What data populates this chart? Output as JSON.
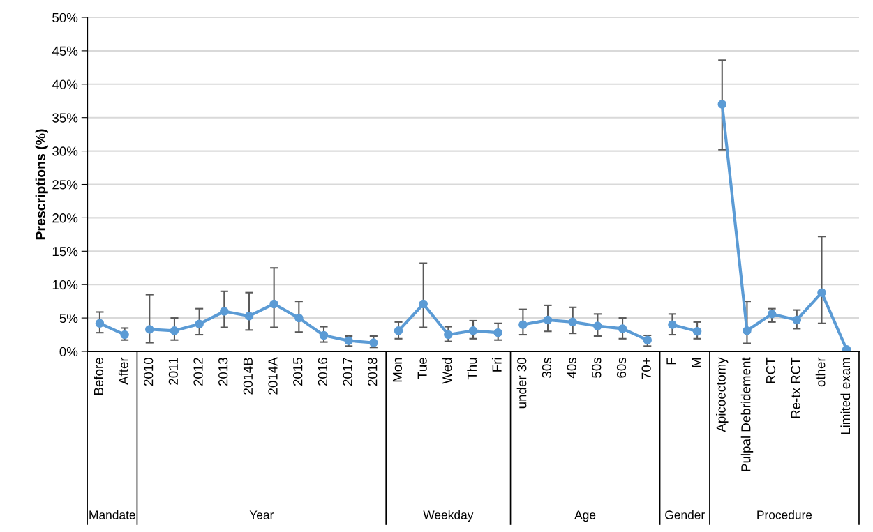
{
  "chart_data": {
    "type": "line",
    "ylabel": "Prescriptions (%)",
    "categories": [
      "Before",
      "After",
      "2010",
      "2011",
      "2012",
      "2013",
      "2014B",
      "2014A",
      "2015",
      "2016",
      "2017",
      "2018",
      "Mon",
      "Tue",
      "Wed",
      "Thu",
      "Fri",
      "under 30",
      "30s",
      "40s",
      "50s",
      "60s",
      "70+",
      "F",
      "M",
      "Apicoectomy",
      "Pulpal Debridement",
      "RCT",
      "Re-tx RCT",
      "other",
      "Limited exam"
    ],
    "series": [
      {
        "color": "#5b9bd5",
        "values": [
          4.2,
          2.5,
          null,
          null,
          null,
          null,
          null,
          null,
          null,
          null,
          null,
          null,
          null,
          null,
          null,
          null,
          null,
          null,
          null,
          null,
          null,
          null,
          null,
          null,
          null,
          null,
          null,
          null,
          null,
          null,
          null
        ],
        "errors": [
          [
            2.8,
            5.9
          ],
          [
            1.7,
            3.5
          ],
          null,
          null,
          null,
          null,
          null,
          null,
          null,
          null,
          null,
          null,
          null,
          null,
          null,
          null,
          null,
          null,
          null,
          null,
          null,
          null,
          null,
          null,
          null,
          null,
          null,
          null,
          null,
          null,
          null
        ]
      },
      {
        "color": "#5b9bd5",
        "values": [
          null,
          null,
          3.3,
          3.1,
          4.1,
          6.0,
          5.3,
          7.1,
          5.0,
          2.4,
          1.6,
          1.3,
          null,
          null,
          null,
          null,
          null,
          null,
          null,
          null,
          null,
          null,
          null,
          null,
          null,
          null,
          null,
          null,
          null,
          null,
          null
        ],
        "errors": [
          null,
          null,
          [
            1.3,
            8.5
          ],
          [
            1.7,
            5.0
          ],
          [
            2.5,
            6.4
          ],
          [
            3.6,
            9.0
          ],
          [
            3.2,
            8.8
          ],
          [
            3.6,
            12.5
          ],
          [
            2.9,
            7.5
          ],
          [
            1.4,
            3.7
          ],
          [
            0.8,
            2.3
          ],
          [
            0.6,
            2.3
          ],
          null,
          null,
          null,
          null,
          null,
          null,
          null,
          null,
          null,
          null,
          null,
          null,
          null,
          null,
          null,
          null,
          null,
          null,
          null
        ]
      },
      {
        "color": "#5b9bd5",
        "values": [
          null,
          null,
          null,
          null,
          null,
          null,
          null,
          null,
          null,
          null,
          null,
          null,
          3.1,
          7.1,
          2.5,
          3.1,
          2.8,
          null,
          null,
          null,
          null,
          null,
          null,
          null,
          null,
          null,
          null,
          null,
          null,
          null,
          null
        ],
        "errors": [
          null,
          null,
          null,
          null,
          null,
          null,
          null,
          null,
          null,
          null,
          null,
          null,
          [
            1.9,
            4.4
          ],
          [
            3.6,
            13.2
          ],
          [
            1.5,
            3.7
          ],
          [
            1.9,
            4.6
          ],
          [
            1.7,
            4.2
          ],
          null,
          null,
          null,
          null,
          null,
          null,
          null,
          null,
          null,
          null,
          null,
          null,
          null,
          null
        ]
      },
      {
        "color": "#5b9bd5",
        "values": [
          null,
          null,
          null,
          null,
          null,
          null,
          null,
          null,
          null,
          null,
          null,
          null,
          null,
          null,
          null,
          null,
          null,
          4.0,
          4.7,
          4.4,
          3.8,
          3.4,
          1.7,
          null,
          null,
          null,
          null,
          null,
          null,
          null,
          null
        ],
        "errors": [
          null,
          null,
          null,
          null,
          null,
          null,
          null,
          null,
          null,
          null,
          null,
          null,
          null,
          null,
          null,
          null,
          null,
          [
            2.5,
            6.3
          ],
          [
            3.0,
            6.9
          ],
          [
            2.7,
            6.6
          ],
          [
            2.3,
            5.6
          ],
          [
            1.9,
            5.0
          ],
          [
            0.8,
            2.4
          ],
          null,
          null,
          null,
          null,
          null,
          null,
          null,
          null
        ]
      },
      {
        "color": "#5b9bd5",
        "values": [
          null,
          null,
          null,
          null,
          null,
          null,
          null,
          null,
          null,
          null,
          null,
          null,
          null,
          null,
          null,
          null,
          null,
          null,
          null,
          null,
          null,
          null,
          null,
          4.0,
          3.0,
          null,
          null,
          null,
          null,
          null,
          null
        ],
        "errors": [
          null,
          null,
          null,
          null,
          null,
          null,
          null,
          null,
          null,
          null,
          null,
          null,
          null,
          null,
          null,
          null,
          null,
          null,
          null,
          null,
          null,
          null,
          null,
          [
            2.5,
            5.6
          ],
          [
            1.9,
            4.4
          ],
          null,
          null,
          null,
          null,
          null,
          null
        ]
      },
      {
        "color": "#5b9bd5",
        "values": [
          null,
          null,
          null,
          null,
          null,
          null,
          null,
          null,
          null,
          null,
          null,
          null,
          null,
          null,
          null,
          null,
          null,
          null,
          null,
          null,
          null,
          null,
          null,
          null,
          null,
          37.0,
          3.1,
          5.6,
          4.7,
          8.8,
          0.3
        ],
        "errors": [
          null,
          null,
          null,
          null,
          null,
          null,
          null,
          null,
          null,
          null,
          null,
          null,
          null,
          null,
          null,
          null,
          null,
          null,
          null,
          null,
          null,
          null,
          null,
          null,
          null,
          [
            30.2,
            43.6
          ],
          [
            1.2,
            7.5
          ],
          [
            4.4,
            6.4
          ],
          [
            3.4,
            6.2
          ],
          [
            4.2,
            17.2
          ],
          null
        ]
      }
    ],
    "ylim": [
      0,
      50
    ],
    "yticks": [
      {
        "value": 0,
        "label": "0%"
      },
      {
        "value": 5,
        "label": "5%"
      },
      {
        "value": 10,
        "label": "10%"
      },
      {
        "value": 15,
        "label": "15%"
      },
      {
        "value": 20,
        "label": "20%"
      },
      {
        "value": 25,
        "label": "25%"
      },
      {
        "value": 30,
        "label": "30%"
      },
      {
        "value": 35,
        "label": "35%"
      },
      {
        "value": 40,
        "label": "40%"
      },
      {
        "value": 45,
        "label": "45%"
      },
      {
        "value": 50,
        "label": "50%"
      }
    ],
    "annotations": [
      "Mandate",
      "Year",
      "Weekday",
      "Age",
      "Gender",
      "Procedure"
    ],
    "grid": "y",
    "marker": "circle",
    "line_style": "solid",
    "legend": false
  }
}
